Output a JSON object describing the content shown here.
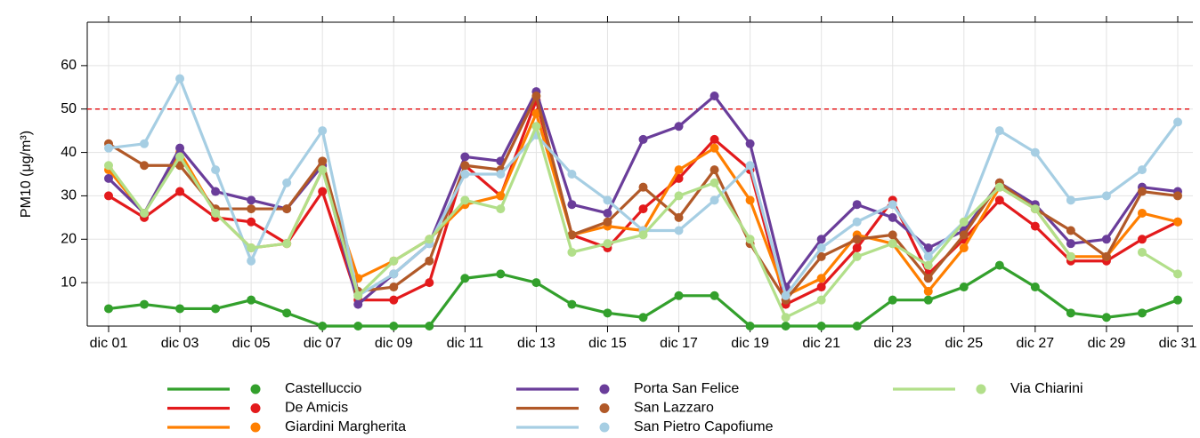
{
  "chart_data": {
    "type": "line",
    "y_label": "PM10 (μg/m³)",
    "categories": [
      "dic 01",
      null,
      "dic 03",
      null,
      "dic 05",
      null,
      "dic 07",
      null,
      "dic 09",
      null,
      "dic 11",
      null,
      "dic 13",
      null,
      "dic 15",
      null,
      "dic 17",
      null,
      "dic 19",
      null,
      "dic 21",
      null,
      "dic 23",
      null,
      "dic 25",
      null,
      "dic 27",
      null,
      "dic 29",
      null,
      "dic 31"
    ],
    "ylim": [
      0,
      70
    ],
    "yticks": [
      10,
      20,
      30,
      40,
      50,
      60
    ],
    "grid": true,
    "threshold": 50,
    "threshold_color": "#e31a1c",
    "series": [
      {
        "name": "Castelluccio",
        "color": "#33a02c",
        "values": [
          4,
          5,
          4,
          4,
          6,
          3,
          0,
          0,
          0,
          0,
          11,
          12,
          10,
          5,
          3,
          2,
          7,
          7,
          0,
          0,
          0,
          0,
          6,
          6,
          9,
          14,
          9,
          3,
          2,
          3,
          6
        ]
      },
      {
        "name": "De Amicis",
        "color": "#e31a1c",
        "values": [
          30,
          25,
          31,
          25,
          24,
          19,
          31,
          6,
          6,
          10,
          37,
          30,
          52,
          21,
          18,
          27,
          34,
          43,
          36,
          5,
          9,
          18,
          29,
          12,
          20,
          29,
          23,
          15,
          15,
          20,
          24
        ]
      },
      {
        "name": "Giardini Margherita",
        "color": "#ff7f00",
        "values": [
          36,
          26,
          40,
          26,
          18,
          19,
          36,
          11,
          15,
          20,
          28,
          30,
          49,
          21,
          23,
          22,
          36,
          41,
          29,
          7,
          11,
          21,
          19,
          8,
          18,
          32,
          27,
          16,
          16,
          26,
          24
        ]
      },
      {
        "name": "Porta San Felice",
        "color": "#6a3d9a",
        "values": [
          34,
          26,
          41,
          31,
          29,
          27,
          37,
          5,
          12,
          19,
          39,
          38,
          54,
          28,
          26,
          43,
          46,
          53,
          42,
          9,
          20,
          28,
          25,
          18,
          22,
          33,
          28,
          19,
          20,
          32,
          31
        ]
      },
      {
        "name": "San Lazzaro",
        "color": "#b15928",
        "values": [
          42,
          37,
          37,
          27,
          27,
          27,
          38,
          8,
          9,
          15,
          37,
          36,
          53,
          21,
          24,
          32,
          25,
          36,
          19,
          6,
          16,
          20,
          21,
          11,
          21,
          33,
          27,
          22,
          16,
          31,
          30
        ]
      },
      {
        "name": "San Pietro Capofiume",
        "color": "#a6cee3",
        "values": [
          41,
          42,
          57,
          36,
          15,
          33,
          45,
          7,
          12,
          19,
          35,
          35,
          44,
          35,
          29,
          22,
          22,
          29,
          37,
          7,
          18,
          24,
          28,
          16,
          24,
          45,
          40,
          29,
          30,
          36,
          47
        ]
      },
      {
        "name": "Via Chiarini",
        "color": "#b2df8a",
        "values": [
          37,
          26,
          39,
          26,
          18,
          19,
          36,
          7,
          15,
          20,
          29,
          27,
          46,
          17,
          19,
          21,
          30,
          33,
          20,
          2,
          6,
          16,
          19,
          14,
          24,
          32,
          27,
          16,
          null,
          17,
          12
        ]
      }
    ]
  }
}
